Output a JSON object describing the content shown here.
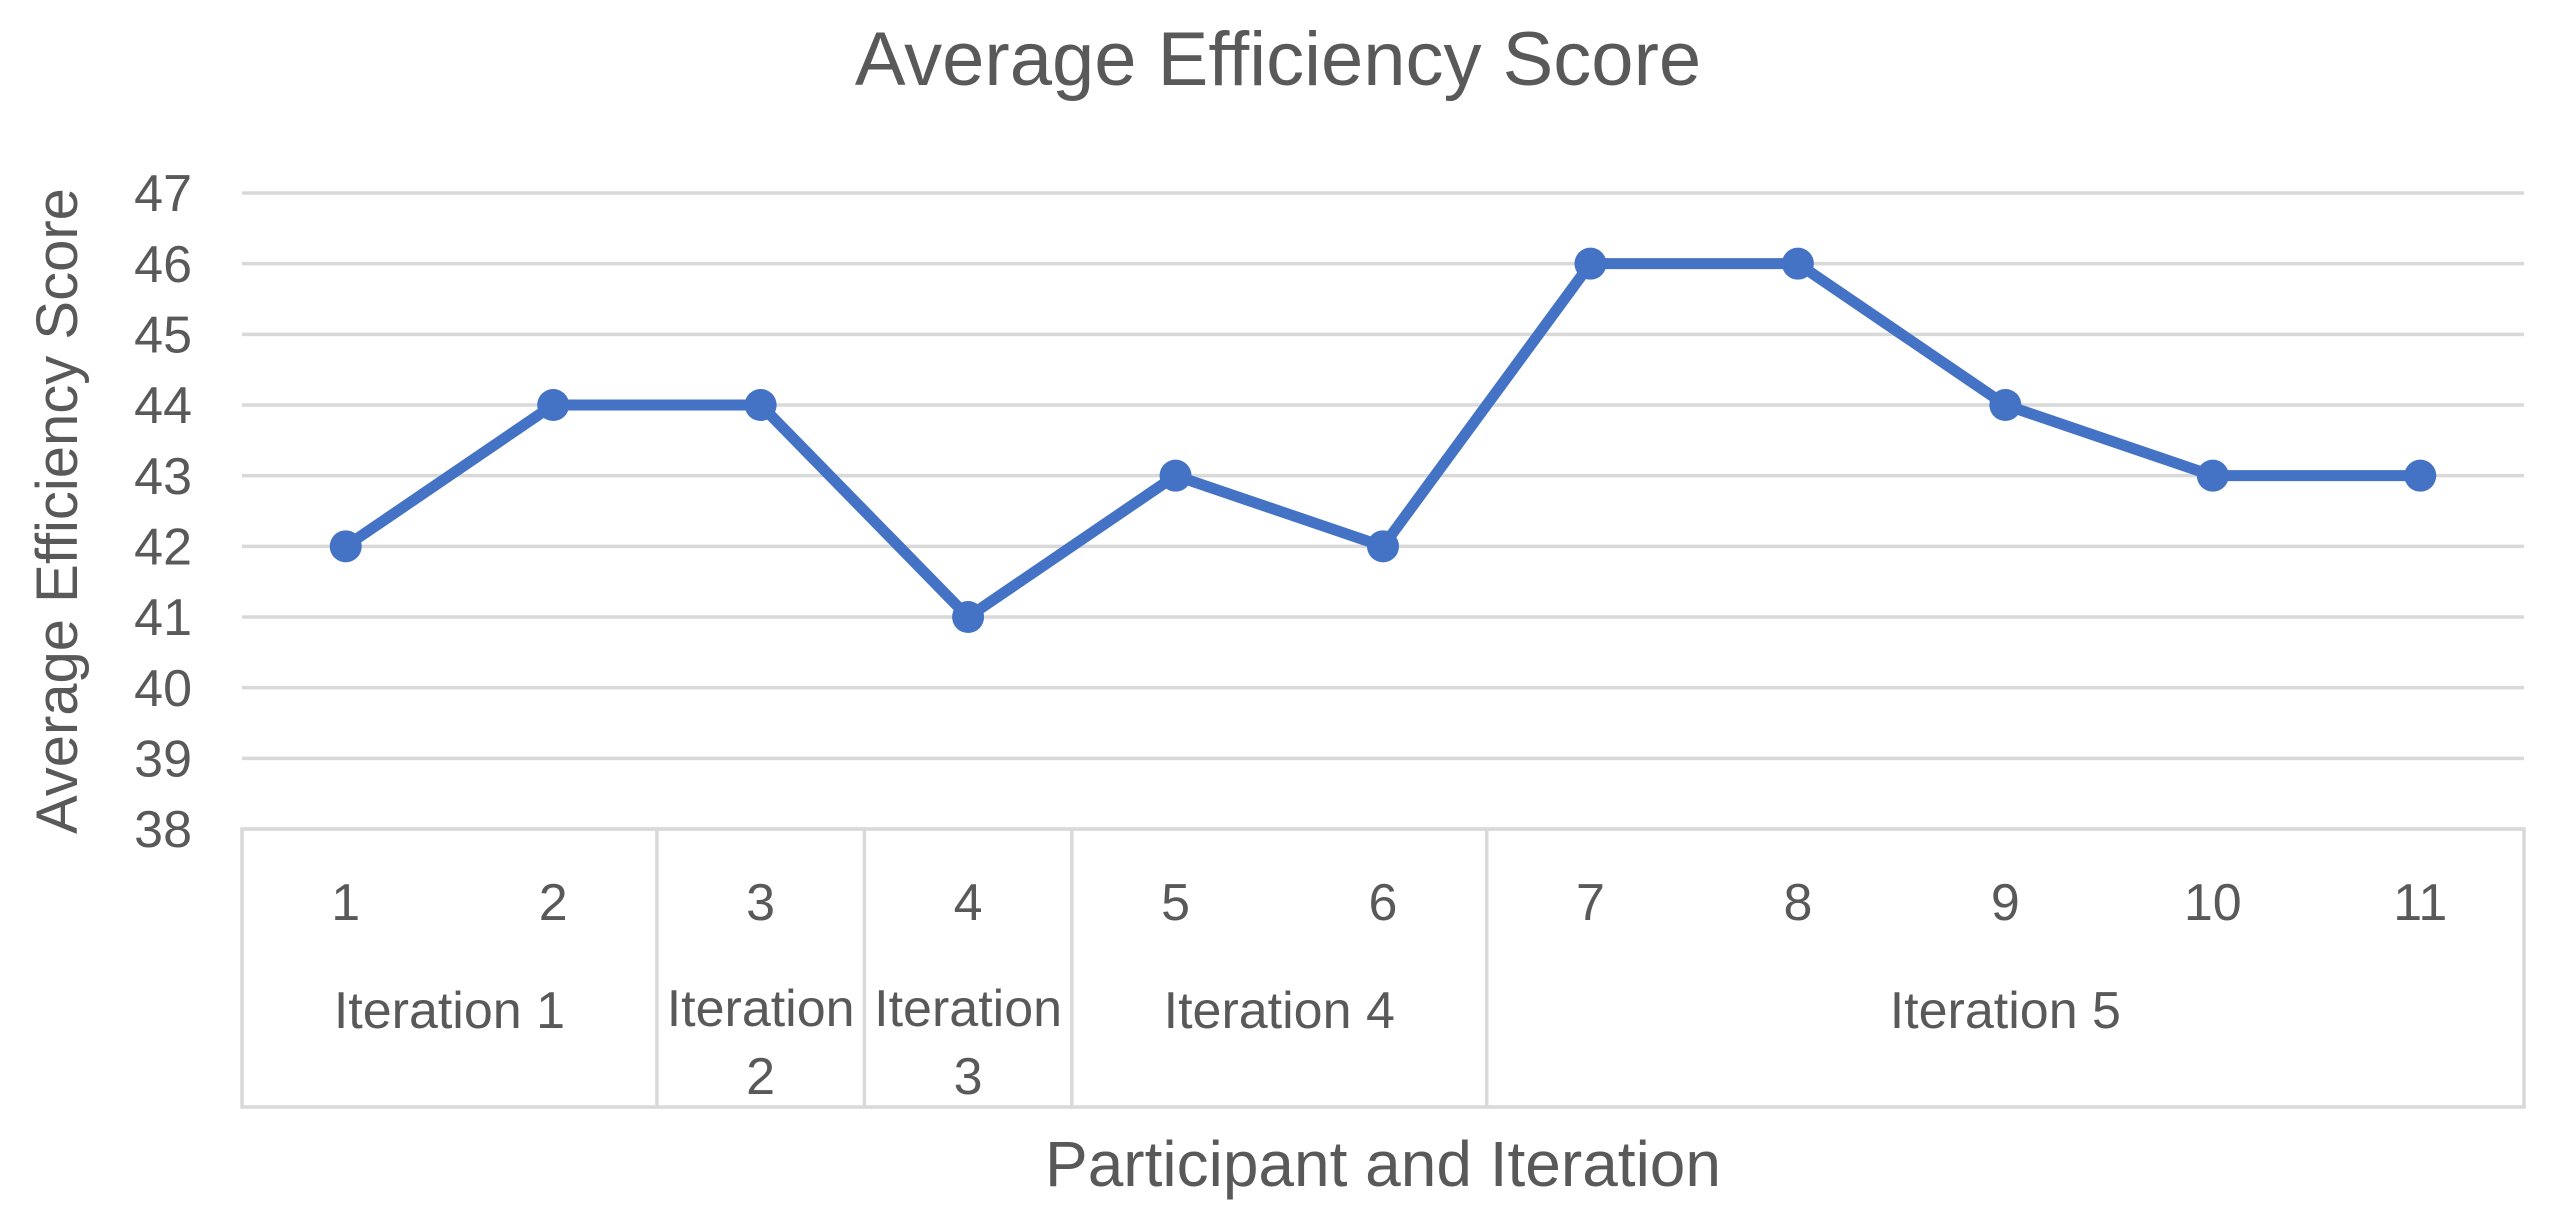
{
  "colors": {
    "line": "#4472C4",
    "marker": "#4472C4",
    "text": "#595959",
    "grid": "#D9D9D9",
    "axis_box_border": "#D9D9D9",
    "background": "#FFFFFF"
  },
  "chart_data": {
    "type": "line",
    "title": "Average Efficiency Score",
    "xlabel": "Participant and Iteration",
    "ylabel": "Average Efficiency Score",
    "categories": [
      "1",
      "2",
      "3",
      "4",
      "5",
      "6",
      "7",
      "8",
      "9",
      "10",
      "11"
    ],
    "values": [
      42,
      44,
      44,
      41,
      43,
      42,
      46,
      46,
      44,
      43,
      43
    ],
    "groups": [
      {
        "label": "Iteration 1",
        "span": 2
      },
      {
        "label": "Iteration 2",
        "span": 1
      },
      {
        "label": "Iteration 3",
        "span": 1
      },
      {
        "label": "Iteration 4",
        "span": 2
      },
      {
        "label": "Iteration 5",
        "span": 5
      }
    ],
    "ylim": [
      38,
      47
    ],
    "yticks": [
      47,
      46,
      45,
      44,
      43,
      42,
      41,
      40,
      39,
      38
    ],
    "grid": true,
    "legend": "none",
    "marker": "circle"
  }
}
